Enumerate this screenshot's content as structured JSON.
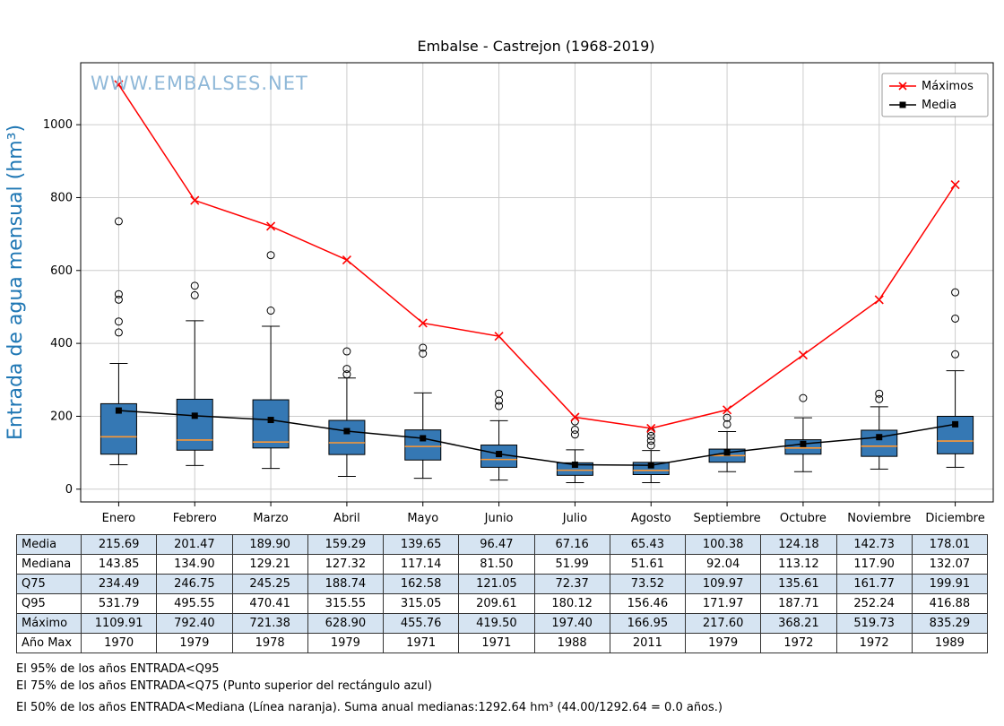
{
  "colors": {
    "maximos_line": "#ff0000",
    "media_line": "#000000",
    "box_fill": "#3578b4",
    "median_line": "#ff9933",
    "ylabel_text": "#1f77b4",
    "watermark_text": "#8fb8d8",
    "table_row_shade": "#d6e4f2",
    "grid": "#cccccc"
  },
  "chart_data": {
    "type": "boxplot+line",
    "title": "Embalse - Castrejon (1968-2019)",
    "watermark": "WWW.EMBALSES.NET",
    "ylabel": "Entrada de agua mensual (hm³)",
    "xlabel": "",
    "grid": true,
    "legend_position": "top-right",
    "ylim": [
      -35,
      1170
    ],
    "yticks": [
      0,
      200,
      400,
      600,
      800,
      1000
    ],
    "categories": [
      "Enero",
      "Febrero",
      "Marzo",
      "Abril",
      "Mayo",
      "Junio",
      "Julio",
      "Agosto",
      "Septiembre",
      "Octubre",
      "Noviembre",
      "Diciembre"
    ],
    "series": [
      {
        "name": "Máximos",
        "marker": "x",
        "color": "#ff0000",
        "values": [
          1109.91,
          792.4,
          721.38,
          628.9,
          455.76,
          419.5,
          197.4,
          166.95,
          217.6,
          368.21,
          519.73,
          835.29
        ]
      },
      {
        "name": "Media",
        "marker": "square",
        "color": "#000000",
        "values": [
          215.69,
          201.47,
          189.9,
          159.29,
          139.65,
          96.47,
          67.16,
          65.43,
          100.38,
          124.18,
          142.73,
          178.01
        ]
      }
    ],
    "boxes": [
      {
        "label": "Enero",
        "whisker_low": 67,
        "q1": 96,
        "median": 143.85,
        "q3": 234.49,
        "whisker_high": 345,
        "outliers": [
          430,
          460,
          520,
          535,
          735
        ]
      },
      {
        "label": "Febrero",
        "whisker_low": 65,
        "q1": 107,
        "median": 134.9,
        "q3": 246.75,
        "whisker_high": 462,
        "outliers": [
          532,
          558
        ]
      },
      {
        "label": "Marzo",
        "whisker_low": 57,
        "q1": 113,
        "median": 129.21,
        "q3": 245.25,
        "whisker_high": 447,
        "outliers": [
          490,
          642
        ]
      },
      {
        "label": "Abril",
        "whisker_low": 35,
        "q1": 95,
        "median": 127.32,
        "q3": 188.74,
        "whisker_high": 305,
        "outliers": [
          315,
          330,
          378
        ]
      },
      {
        "label": "Mayo",
        "whisker_low": 30,
        "q1": 80,
        "median": 117.14,
        "q3": 162.58,
        "whisker_high": 264,
        "outliers": [
          372,
          388
        ]
      },
      {
        "label": "Junio",
        "whisker_low": 25,
        "q1": 60,
        "median": 81.5,
        "q3": 121.05,
        "whisker_high": 188,
        "outliers": [
          228,
          243,
          262
        ]
      },
      {
        "label": "Julio",
        "whisker_low": 18,
        "q1": 38,
        "median": 51.99,
        "q3": 72.37,
        "whisker_high": 108,
        "outliers": [
          150,
          163,
          186
        ]
      },
      {
        "label": "Agosto",
        "whisker_low": 18,
        "q1": 40,
        "median": 51.61,
        "q3": 73.52,
        "whisker_high": 106,
        "outliers": [
          120,
          133,
          146,
          158
        ]
      },
      {
        "label": "Septiembre",
        "whisker_low": 48,
        "q1": 74,
        "median": 92.04,
        "q3": 109.97,
        "whisker_high": 158,
        "outliers": [
          178,
          196
        ]
      },
      {
        "label": "Octubre",
        "whisker_low": 48,
        "q1": 96,
        "median": 113.12,
        "q3": 135.61,
        "whisker_high": 196,
        "outliers": [
          250
        ]
      },
      {
        "label": "Noviembre",
        "whisker_low": 55,
        "q1": 90,
        "median": 117.9,
        "q3": 161.77,
        "whisker_high": 226,
        "outliers": [
          247,
          262
        ]
      },
      {
        "label": "Diciembre",
        "whisker_low": 60,
        "q1": 97,
        "median": 132.07,
        "q3": 199.91,
        "whisker_high": 325,
        "outliers": [
          370,
          468,
          540
        ]
      }
    ]
  },
  "table": {
    "row_headers": [
      "Media",
      "Mediana",
      "Q75",
      "Q95",
      "Máximo",
      "Año Max"
    ],
    "rows": [
      [
        "215.69",
        "201.47",
        "189.90",
        "159.29",
        "139.65",
        "96.47",
        "67.16",
        "65.43",
        "100.38",
        "124.18",
        "142.73",
        "178.01"
      ],
      [
        "143.85",
        "134.90",
        "129.21",
        "127.32",
        "117.14",
        "81.50",
        "51.99",
        "51.61",
        "92.04",
        "113.12",
        "117.90",
        "132.07"
      ],
      [
        "234.49",
        "246.75",
        "245.25",
        "188.74",
        "162.58",
        "121.05",
        "72.37",
        "73.52",
        "109.97",
        "135.61",
        "161.77",
        "199.91"
      ],
      [
        "531.79",
        "495.55",
        "470.41",
        "315.55",
        "315.05",
        "209.61",
        "180.12",
        "156.46",
        "171.97",
        "187.71",
        "252.24",
        "416.88"
      ],
      [
        "1109.91",
        "792.40",
        "721.38",
        "628.90",
        "455.76",
        "419.50",
        "197.40",
        "166.95",
        "217.60",
        "368.21",
        "519.73",
        "835.29"
      ],
      [
        "1970",
        "1979",
        "1978",
        "1979",
        "1971",
        "1971",
        "1988",
        "2011",
        "1979",
        "1972",
        "1972",
        "1989"
      ]
    ]
  },
  "footnotes": [
    "El 95% de los años ENTRADA<Q95",
    "El 75% de los años ENTRADA<Q75 (Punto superior del rectángulo azul)",
    "El 50% de los años ENTRADA<Mediana (Línea naranja). Suma anual medianas:1292.64 hm³ (44.00/1292.64 = 0.0 años.)"
  ]
}
